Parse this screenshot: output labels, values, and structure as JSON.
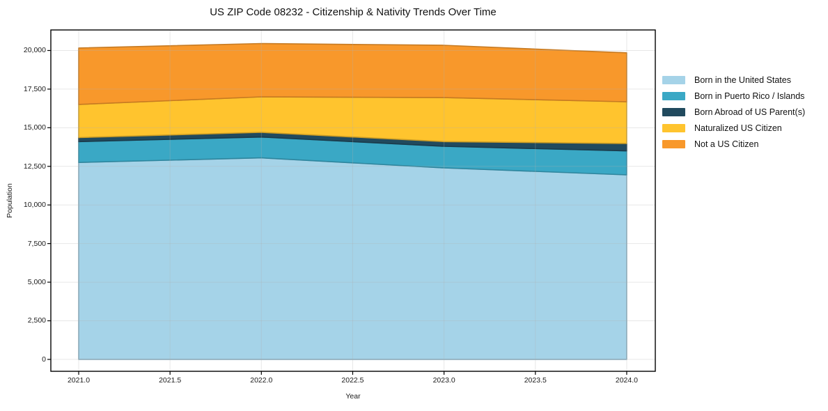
{
  "title": "US ZIP Code 08232 - Citizenship & Nativity Trends Over Time",
  "style": {
    "background": "#FFFFFF",
    "spine_color": "#000000",
    "grid_color": "#B0B0B0",
    "grid_opacity": 0.3,
    "text_color": "#1A1A1A"
  },
  "chart_data": {
    "type": "area",
    "stacked": true,
    "title": "US ZIP Code 08232 - Citizenship & Nativity Trends Over Time",
    "xlabel": "Year",
    "ylabel": "Population",
    "x": [
      2021,
      2022,
      2023,
      2024
    ],
    "series": [
      {
        "name": "Born in the United States",
        "color": "#A5D3E8",
        "values": [
          12750,
          13050,
          12400,
          11950
        ]
      },
      {
        "name": "Born in Puerto Rico / Islands",
        "color": "#3AA8C5",
        "values": [
          1350,
          1350,
          1400,
          1550
        ]
      },
      {
        "name": "Born Abroad of US Parent(s)",
        "color": "#214A5E",
        "values": [
          260,
          300,
          300,
          480
        ]
      },
      {
        "name": "Naturalized US Citizen",
        "color": "#FFC42E",
        "values": [
          2150,
          2300,
          2850,
          2700
        ]
      },
      {
        "name": "Not a US Citizen",
        "color": "#F8982B",
        "values": [
          3650,
          3450,
          3390,
          3170
        ]
      }
    ],
    "totals": [
      20160,
      20450,
      20340,
      19850
    ],
    "xlim": [
      2020.8475,
      2024.1565
    ],
    "ylim": [
      -770,
      21330
    ],
    "x_ticks": [
      {
        "v": 2021.0,
        "label": "2021.0"
      },
      {
        "v": 2021.5,
        "label": "2021.5"
      },
      {
        "v": 2022.0,
        "label": "2022.0"
      },
      {
        "v": 2022.5,
        "label": "2022.5"
      },
      {
        "v": 2023.0,
        "label": "2023.0"
      },
      {
        "v": 2023.5,
        "label": "2023.5"
      },
      {
        "v": 2024.0,
        "label": "2024.0"
      }
    ],
    "y_ticks": [
      {
        "v": 0,
        "label": "0"
      },
      {
        "v": 2500,
        "label": "2,500"
      },
      {
        "v": 5000,
        "label": "5,000"
      },
      {
        "v": 7500,
        "label": "7,500"
      },
      {
        "v": 10000,
        "label": "10,000"
      },
      {
        "v": 12500,
        "label": "12,500"
      },
      {
        "v": 15000,
        "label": "15,000"
      },
      {
        "v": 17500,
        "label": "17,500"
      },
      {
        "v": 20000,
        "label": "20,000"
      }
    ],
    "grid": true,
    "legend_position": "outside right, upper"
  }
}
